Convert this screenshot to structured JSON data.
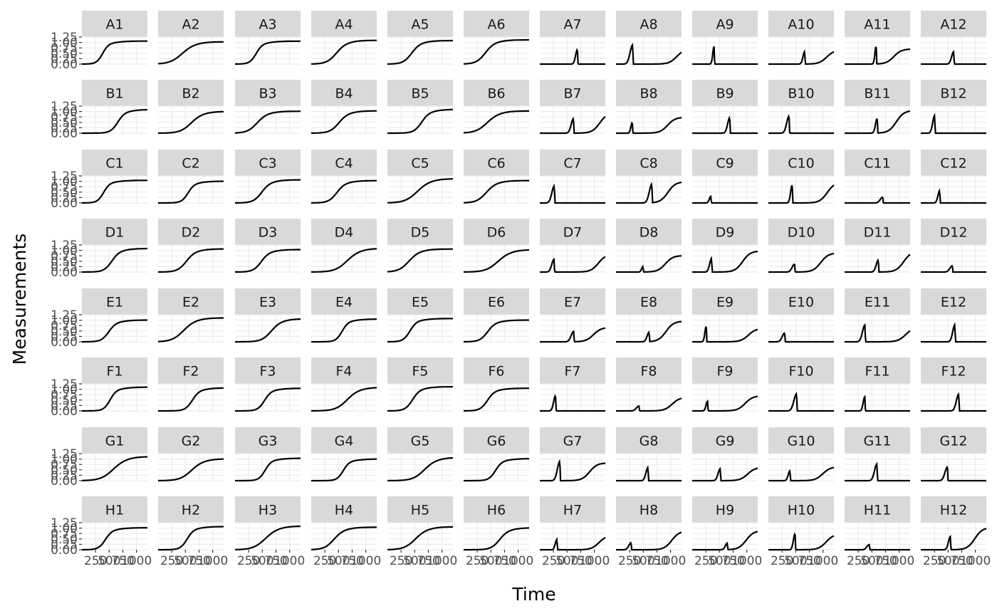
{
  "chart_data": {
    "type": "line",
    "layout": "facet-grid",
    "rows": [
      "A",
      "B",
      "C",
      "D",
      "E",
      "F",
      "G",
      "H"
    ],
    "cols": 12,
    "facets": [
      [
        "A1",
        "A2",
        "A3",
        "A4",
        "A5",
        "A6",
        "A7",
        "A8",
        "A9",
        "A10",
        "A11",
        "A12"
      ],
      [
        "B1",
        "B2",
        "B3",
        "B4",
        "B5",
        "B6",
        "B7",
        "B8",
        "B9",
        "B10",
        "B11",
        "B12"
      ],
      [
        "C1",
        "C2",
        "C3",
        "C4",
        "C5",
        "C6",
        "C7",
        "C8",
        "C9",
        "C10",
        "C11",
        "C12"
      ],
      [
        "D1",
        "D2",
        "D3",
        "D4",
        "D5",
        "D6",
        "D7",
        "D8",
        "D9",
        "D10",
        "D11",
        "D12"
      ],
      [
        "E1",
        "E2",
        "E3",
        "E4",
        "E5",
        "E6",
        "E7",
        "E8",
        "E9",
        "E10",
        "E11",
        "E12"
      ],
      [
        "F1",
        "F2",
        "F3",
        "F4",
        "F5",
        "F6",
        "F7",
        "F8",
        "F9",
        "F10",
        "F11",
        "F12"
      ],
      [
        "G1",
        "G2",
        "G3",
        "G4",
        "G5",
        "G6",
        "G7",
        "G8",
        "G9",
        "G10",
        "G11",
        "G12"
      ],
      [
        "H1",
        "H2",
        "H3",
        "H4",
        "H5",
        "H6",
        "H7",
        "H8",
        "H9",
        "H10",
        "H11",
        "H12"
      ]
    ],
    "curve_types": [
      [
        "S",
        "S",
        "S",
        "S",
        "S",
        "S",
        "P",
        "PS",
        "P",
        "PS",
        "PS",
        "P"
      ],
      [
        "S",
        "S",
        "S",
        "S",
        "S",
        "S",
        "PS",
        "PS",
        "P",
        "P",
        "PS",
        "P"
      ],
      [
        "S",
        "S",
        "S",
        "S",
        "S",
        "S",
        "P",
        "PS",
        "P",
        "PS",
        "P",
        "P"
      ],
      [
        "S",
        "S",
        "S",
        "S",
        "S",
        "S",
        "PS",
        "PS",
        "PS",
        "PS",
        "PS",
        "P"
      ],
      [
        "S",
        "S",
        "S",
        "S",
        "S",
        "S",
        "PS",
        "PS",
        "PS",
        "P",
        "PS",
        "P"
      ],
      [
        "S",
        "S",
        "S",
        "S",
        "S",
        "S",
        "P",
        "PS",
        "PS",
        "P",
        "P",
        "P"
      ],
      [
        "S",
        "S",
        "S",
        "S",
        "S",
        "S",
        "PS",
        "P",
        "PS",
        "PS",
        "P",
        "P"
      ],
      [
        "S",
        "S",
        "S",
        "S",
        "S",
        "S",
        "PS",
        "PS",
        "PS",
        "PS",
        "P",
        "PS"
      ]
    ],
    "xlabel": "Time",
    "ylabel": "Measurements",
    "xlim": [
      0,
      1200
    ],
    "ylim": [
      0,
      1.25
    ],
    "xticks": [
      250,
      500,
      750,
      1000
    ],
    "xtick_labels": [
      "250",
      "500",
      "750",
      "1000"
    ],
    "yticks": [
      0,
      0.25,
      0.5,
      0.75,
      1.0,
      1.25
    ],
    "ytick_labels": [
      "0.00",
      "0.25",
      "0.50",
      "0.75",
      "1.00",
      "1.25"
    ],
    "grid": true,
    "colors": {
      "strip_background": "#d9d9d9",
      "grid_major": "#ebebeb",
      "line": "#000000",
      "tick_text": "#4d4d4d"
    }
  }
}
